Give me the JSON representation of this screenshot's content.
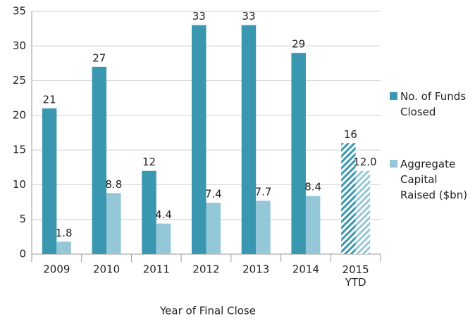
{
  "chart_data": {
    "type": "bar",
    "x_label": "Year of Final Close",
    "categories": [
      "2009",
      "2010",
      "2011",
      "2012",
      "2013",
      "2014",
      "2015 YTD"
    ],
    "series": [
      {
        "name": "No. of Funds Closed",
        "color": "#3a97b0",
        "values": [
          21,
          27,
          12,
          33,
          33,
          29,
          16
        ]
      },
      {
        "name": "Aggregate Capital Raised ($bn)",
        "color": "#94c7d8",
        "values": [
          1.8,
          8.8,
          4.4,
          7.4,
          7.7,
          8.4,
          12.0
        ],
        "value_labels": [
          "1.8",
          "8.8",
          "4.4",
          "7.4",
          "7.7",
          "8.4",
          "12.0"
        ]
      }
    ],
    "hatched_categories": [
      "2015 YTD"
    ],
    "ylim": [
      0,
      35
    ],
    "yticks": [
      0,
      5,
      10,
      15,
      20,
      25,
      30,
      35
    ],
    "grid": true,
    "legend": "right"
  }
}
